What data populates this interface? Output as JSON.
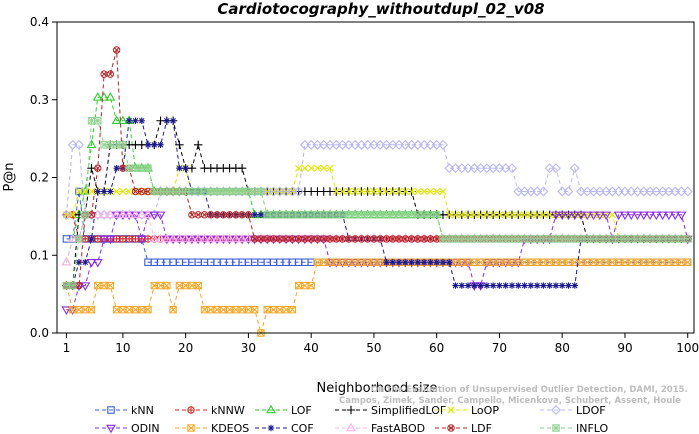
{
  "chart_data": {
    "type": "line",
    "title": "Cardiotocography_withoutdupl_02_v08",
    "xlabel": "Neighborhood size",
    "ylabel": "P@n",
    "xlim": [
      1,
      100
    ],
    "ylim": [
      0,
      0.4
    ],
    "xticks": [
      1,
      10,
      20,
      30,
      40,
      50,
      60,
      70,
      80,
      90,
      100
    ],
    "yticks": [
      0.0,
      0.1,
      0.2,
      0.3,
      0.4
    ],
    "ytick_labels": [
      "0.0",
      "0.1",
      "0.2",
      "0.3",
      "0.4"
    ],
    "legend_position": "bottom",
    "watermark": [
      "Campos, Zimek, Sander, Campello, Micenkova, Schubert, Assent, Houle",
      "On the Evaluation of Unsupervised Outlier Detection, DAMI, 2015."
    ],
    "series": [
      {
        "name": "kNN",
        "color": "#3b5ed6",
        "marker": "square",
        "points": [
          [
            1,
            0.121
          ],
          [
            3,
            0.182
          ],
          [
            4,
            0.121
          ],
          [
            13,
            0.121
          ],
          [
            14,
            0.091
          ],
          [
            100,
            0.091
          ]
        ]
      },
      {
        "name": "kNNW",
        "color": "#d62020",
        "marker": "circle-plus",
        "points": [
          [
            1,
            0.152
          ],
          [
            2,
            0.152
          ],
          [
            3,
            0.121
          ],
          [
            12,
            0.121
          ],
          [
            100,
            0.121
          ]
        ]
      },
      {
        "name": "LOF",
        "color": "#2ecc2e",
        "marker": "triangle",
        "points": [
          [
            1,
            0.091
          ],
          [
            2,
            0.121
          ],
          [
            3,
            0.152
          ],
          [
            4,
            0.182
          ],
          [
            5,
            0.242
          ],
          [
            6,
            0.303
          ],
          [
            8,
            0.303
          ],
          [
            9,
            0.273
          ],
          [
            10,
            0.273
          ],
          [
            12,
            0.212
          ],
          [
            14,
            0.212
          ],
          [
            15,
            0.182
          ],
          [
            30,
            0.182
          ],
          [
            31,
            0.152
          ],
          [
            60,
            0.152
          ],
          [
            61,
            0.121
          ],
          [
            100,
            0.121
          ]
        ]
      },
      {
        "name": "SimplifiedLOF",
        "color": "#000000",
        "marker": "plus",
        "points": [
          [
            1,
            0.061
          ],
          [
            2,
            0.061
          ],
          [
            3,
            0.152
          ],
          [
            5,
            0.212
          ],
          [
            6,
            0.182
          ],
          [
            8,
            0.242
          ],
          [
            12,
            0.242
          ],
          [
            16,
            0.273
          ],
          [
            19,
            0.242
          ],
          [
            20,
            0.212
          ],
          [
            22,
            0.242
          ],
          [
            23,
            0.212
          ],
          [
            29,
            0.212
          ],
          [
            30,
            0.182
          ],
          [
            56,
            0.182
          ],
          [
            57,
            0.152
          ],
          [
            83,
            0.152
          ],
          [
            84,
            0.121
          ],
          [
            100,
            0.121
          ]
        ]
      },
      {
        "name": "LoOP",
        "color": "#e6e600",
        "marker": "x",
        "points": [
          [
            1,
            0.152
          ],
          [
            3,
            0.182
          ],
          [
            18,
            0.182
          ],
          [
            19,
            0.212
          ],
          [
            21,
            0.182
          ],
          [
            37,
            0.182
          ],
          [
            38,
            0.212
          ],
          [
            43,
            0.212
          ],
          [
            44,
            0.182
          ],
          [
            61,
            0.182
          ],
          [
            62,
            0.152
          ],
          [
            88,
            0.152
          ],
          [
            89,
            0.121
          ],
          [
            100,
            0.121
          ]
        ]
      },
      {
        "name": "LDOF",
        "color": "#b8b8f0",
        "marker": "diamond",
        "points": [
          [
            1,
            0.152
          ],
          [
            2,
            0.242
          ],
          [
            3,
            0.242
          ],
          [
            4,
            0.152
          ],
          [
            15,
            0.152
          ],
          [
            16,
            0.182
          ],
          [
            38,
            0.182
          ],
          [
            39,
            0.242
          ],
          [
            61,
            0.242
          ],
          [
            62,
            0.212
          ],
          [
            72,
            0.212
          ],
          [
            73,
            0.182
          ],
          [
            77,
            0.182
          ],
          [
            78,
            0.212
          ],
          [
            80,
            0.182
          ],
          [
            82,
            0.212
          ],
          [
            83,
            0.182
          ],
          [
            100,
            0.182
          ]
        ]
      },
      {
        "name": "ODIN",
        "color": "#8a2be2",
        "marker": "triangle-down",
        "points": [
          [
            1,
            0.03
          ],
          [
            3,
            0.061
          ],
          [
            5,
            0.091
          ],
          [
            7,
            0.121
          ],
          [
            9,
            0.152
          ],
          [
            11,
            0.152
          ],
          [
            13,
            0.121
          ],
          [
            14,
            0.152
          ],
          [
            16,
            0.152
          ],
          [
            17,
            0.121
          ],
          [
            42,
            0.121
          ],
          [
            43,
            0.091
          ],
          [
            54,
            0.091
          ],
          [
            56,
            0.091
          ],
          [
            66,
            0.061
          ],
          [
            68,
            0.091
          ],
          [
            72,
            0.091
          ],
          [
            74,
            0.121
          ],
          [
            79,
            0.152
          ],
          [
            84,
            0.152
          ],
          [
            87,
            0.152
          ],
          [
            88,
            0.121
          ],
          [
            89,
            0.152
          ],
          [
            99,
            0.152
          ],
          [
            100,
            0.121
          ]
        ]
      },
      {
        "name": "KDEOS",
        "color": "#f5a623",
        "marker": "square-x",
        "points": [
          [
            1,
            0.061
          ],
          [
            2,
            0.03
          ],
          [
            5,
            0.03
          ],
          [
            6,
            0.061
          ],
          [
            8,
            0.061
          ],
          [
            9,
            0.03
          ],
          [
            14,
            0.03
          ],
          [
            15,
            0.061
          ],
          [
            17,
            0.061
          ],
          [
            18,
            0.03
          ],
          [
            19,
            0.061
          ],
          [
            22,
            0.061
          ],
          [
            23,
            0.03
          ],
          [
            31,
            0.03
          ],
          [
            32,
            0.0
          ],
          [
            33,
            0.03
          ],
          [
            37,
            0.03
          ],
          [
            38,
            0.061
          ],
          [
            40,
            0.061
          ],
          [
            41,
            0.091
          ],
          [
            100,
            0.091
          ]
        ]
      },
      {
        "name": "COF",
        "color": "#1a1a8c",
        "marker": "asterisk",
        "points": [
          [
            1,
            0.061
          ],
          [
            3,
            0.091
          ],
          [
            5,
            0.121
          ],
          [
            6,
            0.182
          ],
          [
            9,
            0.212
          ],
          [
            11,
            0.273
          ],
          [
            14,
            0.242
          ],
          [
            17,
            0.273
          ],
          [
            19,
            0.212
          ],
          [
            21,
            0.182
          ],
          [
            24,
            0.152
          ],
          [
            45,
            0.152
          ],
          [
            46,
            0.121
          ],
          [
            51,
            0.121
          ],
          [
            52,
            0.091
          ],
          [
            62,
            0.091
          ],
          [
            63,
            0.061
          ],
          [
            82,
            0.061
          ],
          [
            83,
            0.121
          ],
          [
            100,
            0.121
          ]
        ]
      },
      {
        "name": "FastABOD",
        "color": "#ffb3f0",
        "marker": "triangle-outline",
        "points": [
          [
            1,
            0.091
          ],
          [
            2,
            0.121
          ],
          [
            4,
            0.152
          ],
          [
            14,
            0.152
          ],
          [
            15,
            0.121
          ],
          [
            100,
            0.121
          ]
        ]
      },
      {
        "name": "LDF",
        "color": "#b22222",
        "marker": "circle-x",
        "points": [
          [
            1,
            0.061
          ],
          [
            4,
            0.152
          ],
          [
            6,
            0.212
          ],
          [
            7,
            0.333
          ],
          [
            8,
            0.333
          ],
          [
            9,
            0.364
          ],
          [
            10,
            0.212
          ],
          [
            12,
            0.182
          ],
          [
            20,
            0.182
          ],
          [
            21,
            0.152
          ],
          [
            30,
            0.152
          ],
          [
            31,
            0.121
          ],
          [
            100,
            0.121
          ]
        ]
      },
      {
        "name": "INFLO",
        "color": "#8fd18f",
        "marker": "square-star",
        "points": [
          [
            1,
            0.061
          ],
          [
            3,
            0.121
          ],
          [
            4,
            0.152
          ],
          [
            5,
            0.273
          ],
          [
            7,
            0.242
          ],
          [
            10,
            0.242
          ],
          [
            11,
            0.212
          ],
          [
            14,
            0.212
          ],
          [
            15,
            0.182
          ],
          [
            32,
            0.182
          ],
          [
            33,
            0.152
          ],
          [
            60,
            0.152
          ],
          [
            61,
            0.121
          ],
          [
            100,
            0.121
          ]
        ]
      }
    ]
  }
}
